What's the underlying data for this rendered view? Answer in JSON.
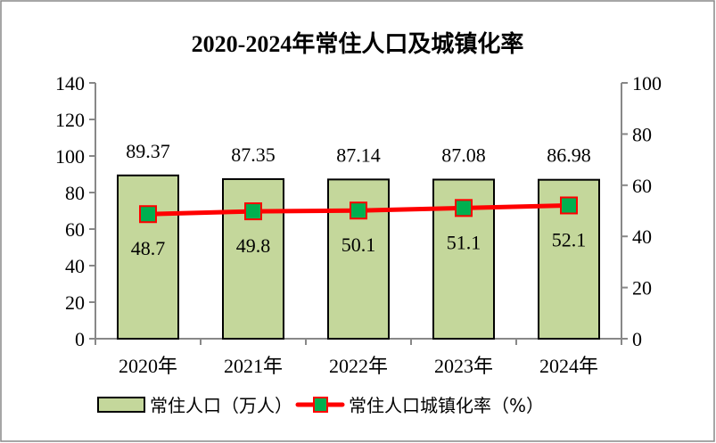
{
  "chart_data": {
    "type": "bar+line",
    "title": "2020-2024年常住人口及城镇化率",
    "categories": [
      "2020年",
      "2021年",
      "2022年",
      "2023年",
      "2024年"
    ],
    "series": [
      {
        "name": "常住人口（万人）",
        "type": "bar",
        "axis": "left",
        "values": [
          89.37,
          87.35,
          87.14,
          87.08,
          86.98
        ],
        "labels": [
          "89.37",
          "87.35",
          "87.14",
          "87.08",
          "86.98"
        ]
      },
      {
        "name": "常住人口城镇化率（%）",
        "type": "line",
        "axis": "right",
        "values": [
          48.7,
          49.8,
          50.1,
          51.1,
          52.1
        ],
        "labels": [
          "48.7",
          "49.8",
          "50.1",
          "51.1",
          "52.1"
        ]
      }
    ],
    "y_left": {
      "range": [
        0,
        140
      ],
      "ticks": [
        "0",
        "20",
        "40",
        "60",
        "80",
        "100",
        "120",
        "140"
      ]
    },
    "y_right": {
      "range": [
        0,
        100
      ],
      "ticks": [
        "0",
        "20",
        "40",
        "60",
        "80",
        "100"
      ]
    },
    "grid": false,
    "legend_position": "bottom",
    "colors": {
      "bar_fill": "#c4d79b",
      "bar_stroke": "#000000",
      "line": "#ff0000",
      "marker": "#00b050"
    }
  }
}
